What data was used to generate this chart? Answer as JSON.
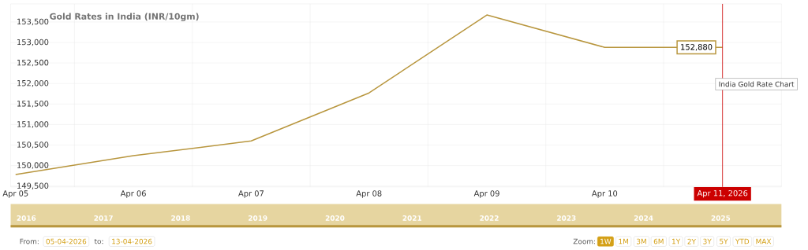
{
  "chart_data": {
    "type": "line",
    "title": "Gold Rates in India (INR/10gm)",
    "x": [
      "2026-04-05",
      "2026-04-06",
      "2026-04-07",
      "2026-04-08",
      "2026-04-09",
      "2026-04-10",
      "2026-04-11"
    ],
    "series": [
      {
        "color": "#b8963e",
        "values": [
          149780,
          150240,
          150600,
          151770,
          153670,
          152880,
          152880
        ]
      }
    ],
    "xlim": [
      "2026-04-04T23:00",
      "2026-04-11T12:00"
    ],
    "xticks": [
      {
        "value": "2026-04-05",
        "label": "Apr 05"
      },
      {
        "value": "2026-04-06",
        "label": "Apr 06"
      },
      {
        "value": "2026-04-07",
        "label": "Apr 07"
      },
      {
        "value": "2026-04-08",
        "label": "Apr 08"
      },
      {
        "value": "2026-04-09",
        "label": "Apr 09"
      },
      {
        "value": "2026-04-10",
        "label": "Apr 10"
      },
      {
        "value": "2026-04-05T12:00",
        "label": null
      },
      {
        "value": "2026-04-06T12:00",
        "label": null
      },
      {
        "value": "2026-04-07T12:00",
        "label": null
      },
      {
        "value": "2026-04-08T12:00",
        "label": null
      },
      {
        "value": "2026-04-09T12:00",
        "label": null
      },
      {
        "value": "2026-04-10T12:00",
        "label": null
      }
    ],
    "ylim": [
      149480,
      153940
    ],
    "yticks": [
      {
        "value": 149500,
        "label": "149,500"
      },
      {
        "value": 150000,
        "label": "150,000"
      },
      {
        "value": 150500,
        "label": "150,500"
      },
      {
        "value": 151000,
        "label": "151,000"
      },
      {
        "value": 151500,
        "label": "151,500"
      },
      {
        "value": 152000,
        "label": "152,000"
      },
      {
        "value": 152500,
        "label": "152,500"
      },
      {
        "value": 153000,
        "label": "153,000"
      },
      {
        "value": 153500,
        "label": "153,500"
      }
    ],
    "grid": true,
    "ref_lines": [
      {
        "axis": "x",
        "value": "2026-04-11",
        "label": "Apr 11, 2026",
        "color": "#cc0000"
      }
    ],
    "annotations": [
      {
        "text": "152,880",
        "x": "2026-04-11",
        "y": 152880
      },
      "India Gold Rate Chart",
      "2016",
      "2017",
      "2018",
      "2019",
      "2020",
      "2021",
      "2022",
      "2023",
      "2024",
      "2025",
      "From:",
      "05-04-2026",
      "to:",
      "13-04-2026",
      "Zoom:",
      "1W",
      "1M",
      "3M",
      "6M",
      "1Y",
      "2Y",
      "3Y",
      "5Y",
      "YTD",
      "MAX"
    ]
  }
}
